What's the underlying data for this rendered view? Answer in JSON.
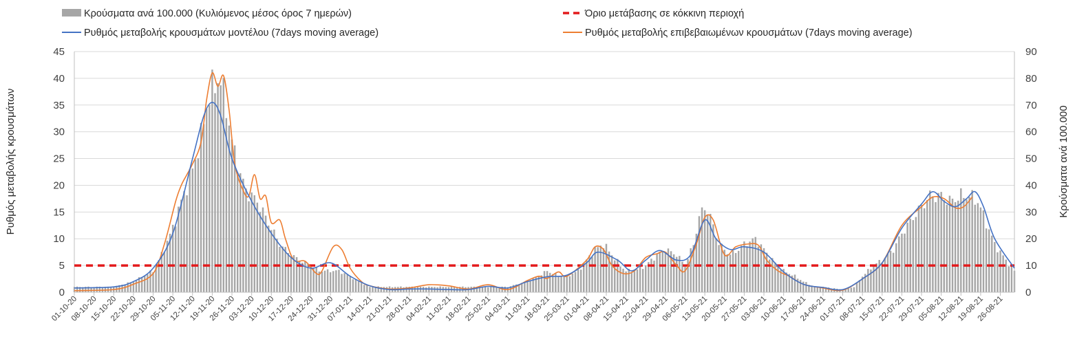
{
  "chart_data": {
    "type": "bar+line",
    "legend": [
      {
        "key": "bars",
        "label": "Κρούσματα ανά 100.000 (Κυλιόμενος μέσος όρος 7 ημερών)",
        "color": "#a6a6a6",
        "style": "bar"
      },
      {
        "key": "threshold",
        "label": "Όριο μετάβασης σε κόκκινη περιοχή",
        "color": "#e31a1c",
        "style": "dashed"
      },
      {
        "key": "model",
        "label": "Ρυθμός μεταβολής κρουσμάτων μοντέλου (7days moving average)",
        "color": "#4472c4",
        "style": "line"
      },
      {
        "key": "confirmed",
        "label": "Ρυθμός μεταβολής επιβεβαιωμένων κρουσμάτων (7days moving average)",
        "color": "#ed7d31",
        "style": "line"
      }
    ],
    "ylabel_left": "Ρυθμός μεταβολής κρουσμάτων",
    "ylabel_right": "Κρούσματα ανά 100.000",
    "ylim_left": [
      0,
      45
    ],
    "ylim_right": [
      0,
      90
    ],
    "yticks_left": [
      "0",
      "5",
      "10",
      "15",
      "20",
      "25",
      "30",
      "35",
      "40",
      "45"
    ],
    "yticks_right": [
      "0",
      "10",
      "20",
      "30",
      "40",
      "50",
      "60",
      "70",
      "80",
      "90"
    ],
    "x_tick_labels": [
      "01-10-20",
      "08-10-20",
      "15-10-20",
      "22-10-20",
      "29-10-20",
      "05-11-20",
      "12-11-20",
      "19-11-20",
      "26-11-20",
      "03-12-20",
      "10-12-20",
      "17-12-20",
      "24-12-20",
      "31-12-20",
      "07-01-21",
      "14-01-21",
      "21-01-21",
      "28-01-21",
      "04-02-21",
      "11-02-21",
      "18-02-21",
      "25-02-21",
      "04-03-21",
      "11-03-21",
      "18-03-21",
      "25-03-21",
      "01-04-21",
      "08-04-21",
      "15-04-21",
      "22-04-21",
      "29-04-21",
      "06-05-21",
      "13-05-21",
      "20-05-21",
      "27-05-21",
      "03-06-21",
      "10-06-21",
      "17-06-21",
      "24-06-21",
      "01-07-21",
      "08-07-21",
      "15-07-21",
      "22-07-21",
      "29-07-21",
      "05-08-21",
      "12-08-21",
      "19-08-21",
      "26-08-21"
    ],
    "x_start": "2020-10-01",
    "x_end": "2021-08-31",
    "threshold_value": 5,
    "grid": true,
    "legend_position": "top",
    "bars_right_axis": [
      [
        "2020-10-01",
        2
      ],
      [
        "2020-10-08",
        2
      ],
      [
        "2020-10-15",
        2
      ],
      [
        "2020-10-22",
        4
      ],
      [
        "2020-10-29",
        8
      ],
      [
        "2020-11-01",
        14
      ],
      [
        "2020-11-05",
        24
      ],
      [
        "2020-11-08",
        34
      ],
      [
        "2020-11-12",
        46
      ],
      [
        "2020-11-15",
        58
      ],
      [
        "2020-11-17",
        70
      ],
      [
        "2020-11-19",
        76
      ],
      [
        "2020-11-21",
        80
      ],
      [
        "2020-11-22",
        78
      ],
      [
        "2020-11-24",
        70
      ],
      [
        "2020-11-26",
        56
      ],
      [
        "2020-11-29",
        44
      ],
      [
        "2020-12-01",
        38
      ],
      [
        "2020-12-03",
        36
      ],
      [
        "2020-12-05",
        34
      ],
      [
        "2020-12-08",
        28
      ],
      [
        "2020-12-10",
        24
      ],
      [
        "2020-12-13",
        18
      ],
      [
        "2020-12-17",
        14
      ],
      [
        "2020-12-20",
        12
      ],
      [
        "2020-12-24",
        10
      ],
      [
        "2020-12-27",
        8
      ],
      [
        "2020-12-31",
        8
      ],
      [
        "2021-01-03",
        8
      ],
      [
        "2021-01-07",
        6
      ],
      [
        "2021-01-10",
        4
      ],
      [
        "2021-01-14",
        2
      ],
      [
        "2021-01-21",
        2
      ],
      [
        "2021-01-28",
        2
      ],
      [
        "2021-02-04",
        2
      ],
      [
        "2021-02-11",
        2
      ],
      [
        "2021-02-18",
        2
      ],
      [
        "2021-02-25",
        2
      ],
      [
        "2021-03-04",
        2
      ],
      [
        "2021-03-11",
        4
      ],
      [
        "2021-03-15",
        6
      ],
      [
        "2021-03-18",
        8
      ],
      [
        "2021-03-22",
        6
      ],
      [
        "2021-03-25",
        6
      ],
      [
        "2021-03-29",
        8
      ],
      [
        "2021-04-01",
        12
      ],
      [
        "2021-04-04",
        16
      ],
      [
        "2021-04-07",
        18
      ],
      [
        "2021-04-10",
        14
      ],
      [
        "2021-04-13",
        10
      ],
      [
        "2021-04-15",
        8
      ],
      [
        "2021-04-18",
        8
      ],
      [
        "2021-04-22",
        10
      ],
      [
        "2021-04-26",
        14
      ],
      [
        "2021-04-29",
        16
      ],
      [
        "2021-05-03",
        14
      ],
      [
        "2021-05-06",
        10
      ],
      [
        "2021-05-09",
        18
      ],
      [
        "2021-05-11",
        28
      ],
      [
        "2021-05-13",
        32
      ],
      [
        "2021-05-15",
        28
      ],
      [
        "2021-05-18",
        18
      ],
      [
        "2021-05-22",
        14
      ],
      [
        "2021-05-25",
        16
      ],
      [
        "2021-05-27",
        18
      ],
      [
        "2021-05-31",
        20
      ],
      [
        "2021-06-03",
        16
      ],
      [
        "2021-06-06",
        12
      ],
      [
        "2021-06-10",
        8
      ],
      [
        "2021-06-14",
        6
      ],
      [
        "2021-06-17",
        4
      ],
      [
        "2021-06-21",
        2
      ],
      [
        "2021-06-24",
        2
      ],
      [
        "2021-07-01",
        1
      ],
      [
        "2021-07-05",
        2
      ],
      [
        "2021-07-08",
        6
      ],
      [
        "2021-07-12",
        10
      ],
      [
        "2021-07-15",
        12
      ],
      [
        "2021-07-19",
        16
      ],
      [
        "2021-07-22",
        22
      ],
      [
        "2021-07-26",
        28
      ],
      [
        "2021-07-29",
        32
      ],
      [
        "2021-08-01",
        36
      ],
      [
        "2021-08-05",
        36
      ],
      [
        "2021-08-08",
        34
      ],
      [
        "2021-08-12",
        36
      ],
      [
        "2021-08-15",
        36
      ],
      [
        "2021-08-18",
        34
      ],
      [
        "2021-08-21",
        26
      ],
      [
        "2021-08-24",
        18
      ],
      [
        "2021-08-28",
        12
      ],
      [
        "2021-08-31",
        8
      ]
    ],
    "model_series": [
      [
        "2020-10-01",
        0.8
      ],
      [
        "2020-10-15",
        1.0
      ],
      [
        "2020-10-22",
        2.0
      ],
      [
        "2020-10-29",
        4.5
      ],
      [
        "2020-11-05",
        11
      ],
      [
        "2020-11-12",
        25
      ],
      [
        "2020-11-16",
        33
      ],
      [
        "2020-11-19",
        35.5
      ],
      [
        "2020-11-22",
        33
      ],
      [
        "2020-11-26",
        25
      ],
      [
        "2020-12-03",
        17
      ],
      [
        "2020-12-10",
        11
      ],
      [
        "2020-12-17",
        6.5
      ],
      [
        "2020-12-24",
        4.5
      ],
      [
        "2020-12-31",
        5.5
      ],
      [
        "2021-01-07",
        3
      ],
      [
        "2021-01-14",
        1.2
      ],
      [
        "2021-01-21",
        0.5
      ],
      [
        "2021-01-28",
        0.6
      ],
      [
        "2021-02-04",
        0.6
      ],
      [
        "2021-02-11",
        0.5
      ],
      [
        "2021-02-18",
        0.5
      ],
      [
        "2021-02-25",
        1.1
      ],
      [
        "2021-03-04",
        0.8
      ],
      [
        "2021-03-11",
        2.0
      ],
      [
        "2021-03-18",
        2.9
      ],
      [
        "2021-03-25",
        3.2
      ],
      [
        "2021-04-01",
        5.5
      ],
      [
        "2021-04-05",
        7.5
      ],
      [
        "2021-04-12",
        6.0
      ],
      [
        "2021-04-17",
        4.0
      ],
      [
        "2021-04-22",
        6.0
      ],
      [
        "2021-04-27",
        7.8
      ],
      [
        "2021-05-03",
        6.0
      ],
      [
        "2021-05-08",
        7.0
      ],
      [
        "2021-05-13",
        13.5
      ],
      [
        "2021-05-17",
        10
      ],
      [
        "2021-05-22",
        8.0
      ],
      [
        "2021-05-27",
        8.5
      ],
      [
        "2021-06-03",
        7.5
      ],
      [
        "2021-06-10",
        3.8
      ],
      [
        "2021-06-17",
        1.5
      ],
      [
        "2021-06-24",
        0.9
      ],
      [
        "2021-07-01",
        0.5
      ],
      [
        "2021-07-08",
        2.5
      ],
      [
        "2021-07-15",
        5.5
      ],
      [
        "2021-07-22",
        12
      ],
      [
        "2021-07-29",
        16.5
      ],
      [
        "2021-08-02",
        18.8
      ],
      [
        "2021-08-06",
        17
      ],
      [
        "2021-08-10",
        16
      ],
      [
        "2021-08-14",
        17.5
      ],
      [
        "2021-08-17",
        18.8
      ],
      [
        "2021-08-20",
        16
      ],
      [
        "2021-08-24",
        10
      ],
      [
        "2021-08-31",
        4.5
      ]
    ],
    "confirmed_series": [
      [
        "2020-10-01",
        0.3
      ],
      [
        "2020-10-15",
        0.5
      ],
      [
        "2020-10-22",
        1.5
      ],
      [
        "2020-10-29",
        3.5
      ],
      [
        "2020-11-02",
        9
      ],
      [
        "2020-11-06",
        17
      ],
      [
        "2020-11-08",
        20
      ],
      [
        "2020-11-10",
        22
      ],
      [
        "2020-11-12",
        24
      ],
      [
        "2020-11-15",
        28
      ],
      [
        "2020-11-17",
        36
      ],
      [
        "2020-11-19",
        41
      ],
      [
        "2020-11-21",
        38.5
      ],
      [
        "2020-11-23",
        40.5
      ],
      [
        "2020-11-25",
        34
      ],
      [
        "2020-11-27",
        24
      ],
      [
        "2020-11-30",
        19
      ],
      [
        "2020-12-02",
        18
      ],
      [
        "2020-12-04",
        22
      ],
      [
        "2020-12-06",
        17.5
      ],
      [
        "2020-12-08",
        18
      ],
      [
        "2020-12-10",
        13
      ],
      [
        "2020-12-13",
        13.5
      ],
      [
        "2020-12-15",
        10
      ],
      [
        "2020-12-18",
        6
      ],
      [
        "2020-12-22",
        5.8
      ],
      [
        "2020-12-26",
        3.5
      ],
      [
        "2020-12-28",
        4
      ],
      [
        "2021-01-01",
        8.5
      ],
      [
        "2021-01-04",
        8
      ],
      [
        "2021-01-07",
        4.5
      ],
      [
        "2021-01-11",
        2
      ],
      [
        "2021-01-14",
        1.2
      ],
      [
        "2021-01-21",
        0.6
      ],
      [
        "2021-01-28",
        0.8
      ],
      [
        "2021-02-04",
        1.4
      ],
      [
        "2021-02-11",
        1.2
      ],
      [
        "2021-02-18",
        0.6
      ],
      [
        "2021-02-25",
        1.4
      ],
      [
        "2021-03-04",
        0.5
      ],
      [
        "2021-03-11",
        2.2
      ],
      [
        "2021-03-15",
        3
      ],
      [
        "2021-03-18",
        2.6
      ],
      [
        "2021-03-22",
        3.8
      ],
      [
        "2021-03-25",
        3.0
      ],
      [
        "2021-04-01",
        6
      ],
      [
        "2021-04-04",
        8.5
      ],
      [
        "2021-04-07",
        8
      ],
      [
        "2021-04-10",
        5
      ],
      [
        "2021-04-14",
        3.5
      ],
      [
        "2021-04-18",
        4
      ],
      [
        "2021-04-22",
        6.5
      ],
      [
        "2021-04-26",
        7.2
      ],
      [
        "2021-04-29",
        7.5
      ],
      [
        "2021-05-03",
        5
      ],
      [
        "2021-05-06",
        4
      ],
      [
        "2021-05-10",
        9
      ],
      [
        "2021-05-13",
        14
      ],
      [
        "2021-05-16",
        13.5
      ],
      [
        "2021-05-20",
        7
      ],
      [
        "2021-05-24",
        8.5
      ],
      [
        "2021-05-28",
        9
      ],
      [
        "2021-06-01",
        8.8
      ],
      [
        "2021-06-04",
        6
      ],
      [
        "2021-06-08",
        4
      ],
      [
        "2021-06-12",
        3
      ],
      [
        "2021-06-17",
        1.5
      ],
      [
        "2021-06-24",
        0.8
      ],
      [
        "2021-07-01",
        0.4
      ],
      [
        "2021-07-08",
        2.5
      ],
      [
        "2021-07-15",
        5.5
      ],
      [
        "2021-07-22",
        12.5
      ],
      [
        "2021-07-29",
        16
      ],
      [
        "2021-08-02",
        17.8
      ],
      [
        "2021-08-06",
        17.5
      ],
      [
        "2021-08-10",
        15.8
      ],
      [
        "2021-08-13",
        16
      ],
      [
        "2021-08-16",
        17.8
      ]
    ]
  }
}
